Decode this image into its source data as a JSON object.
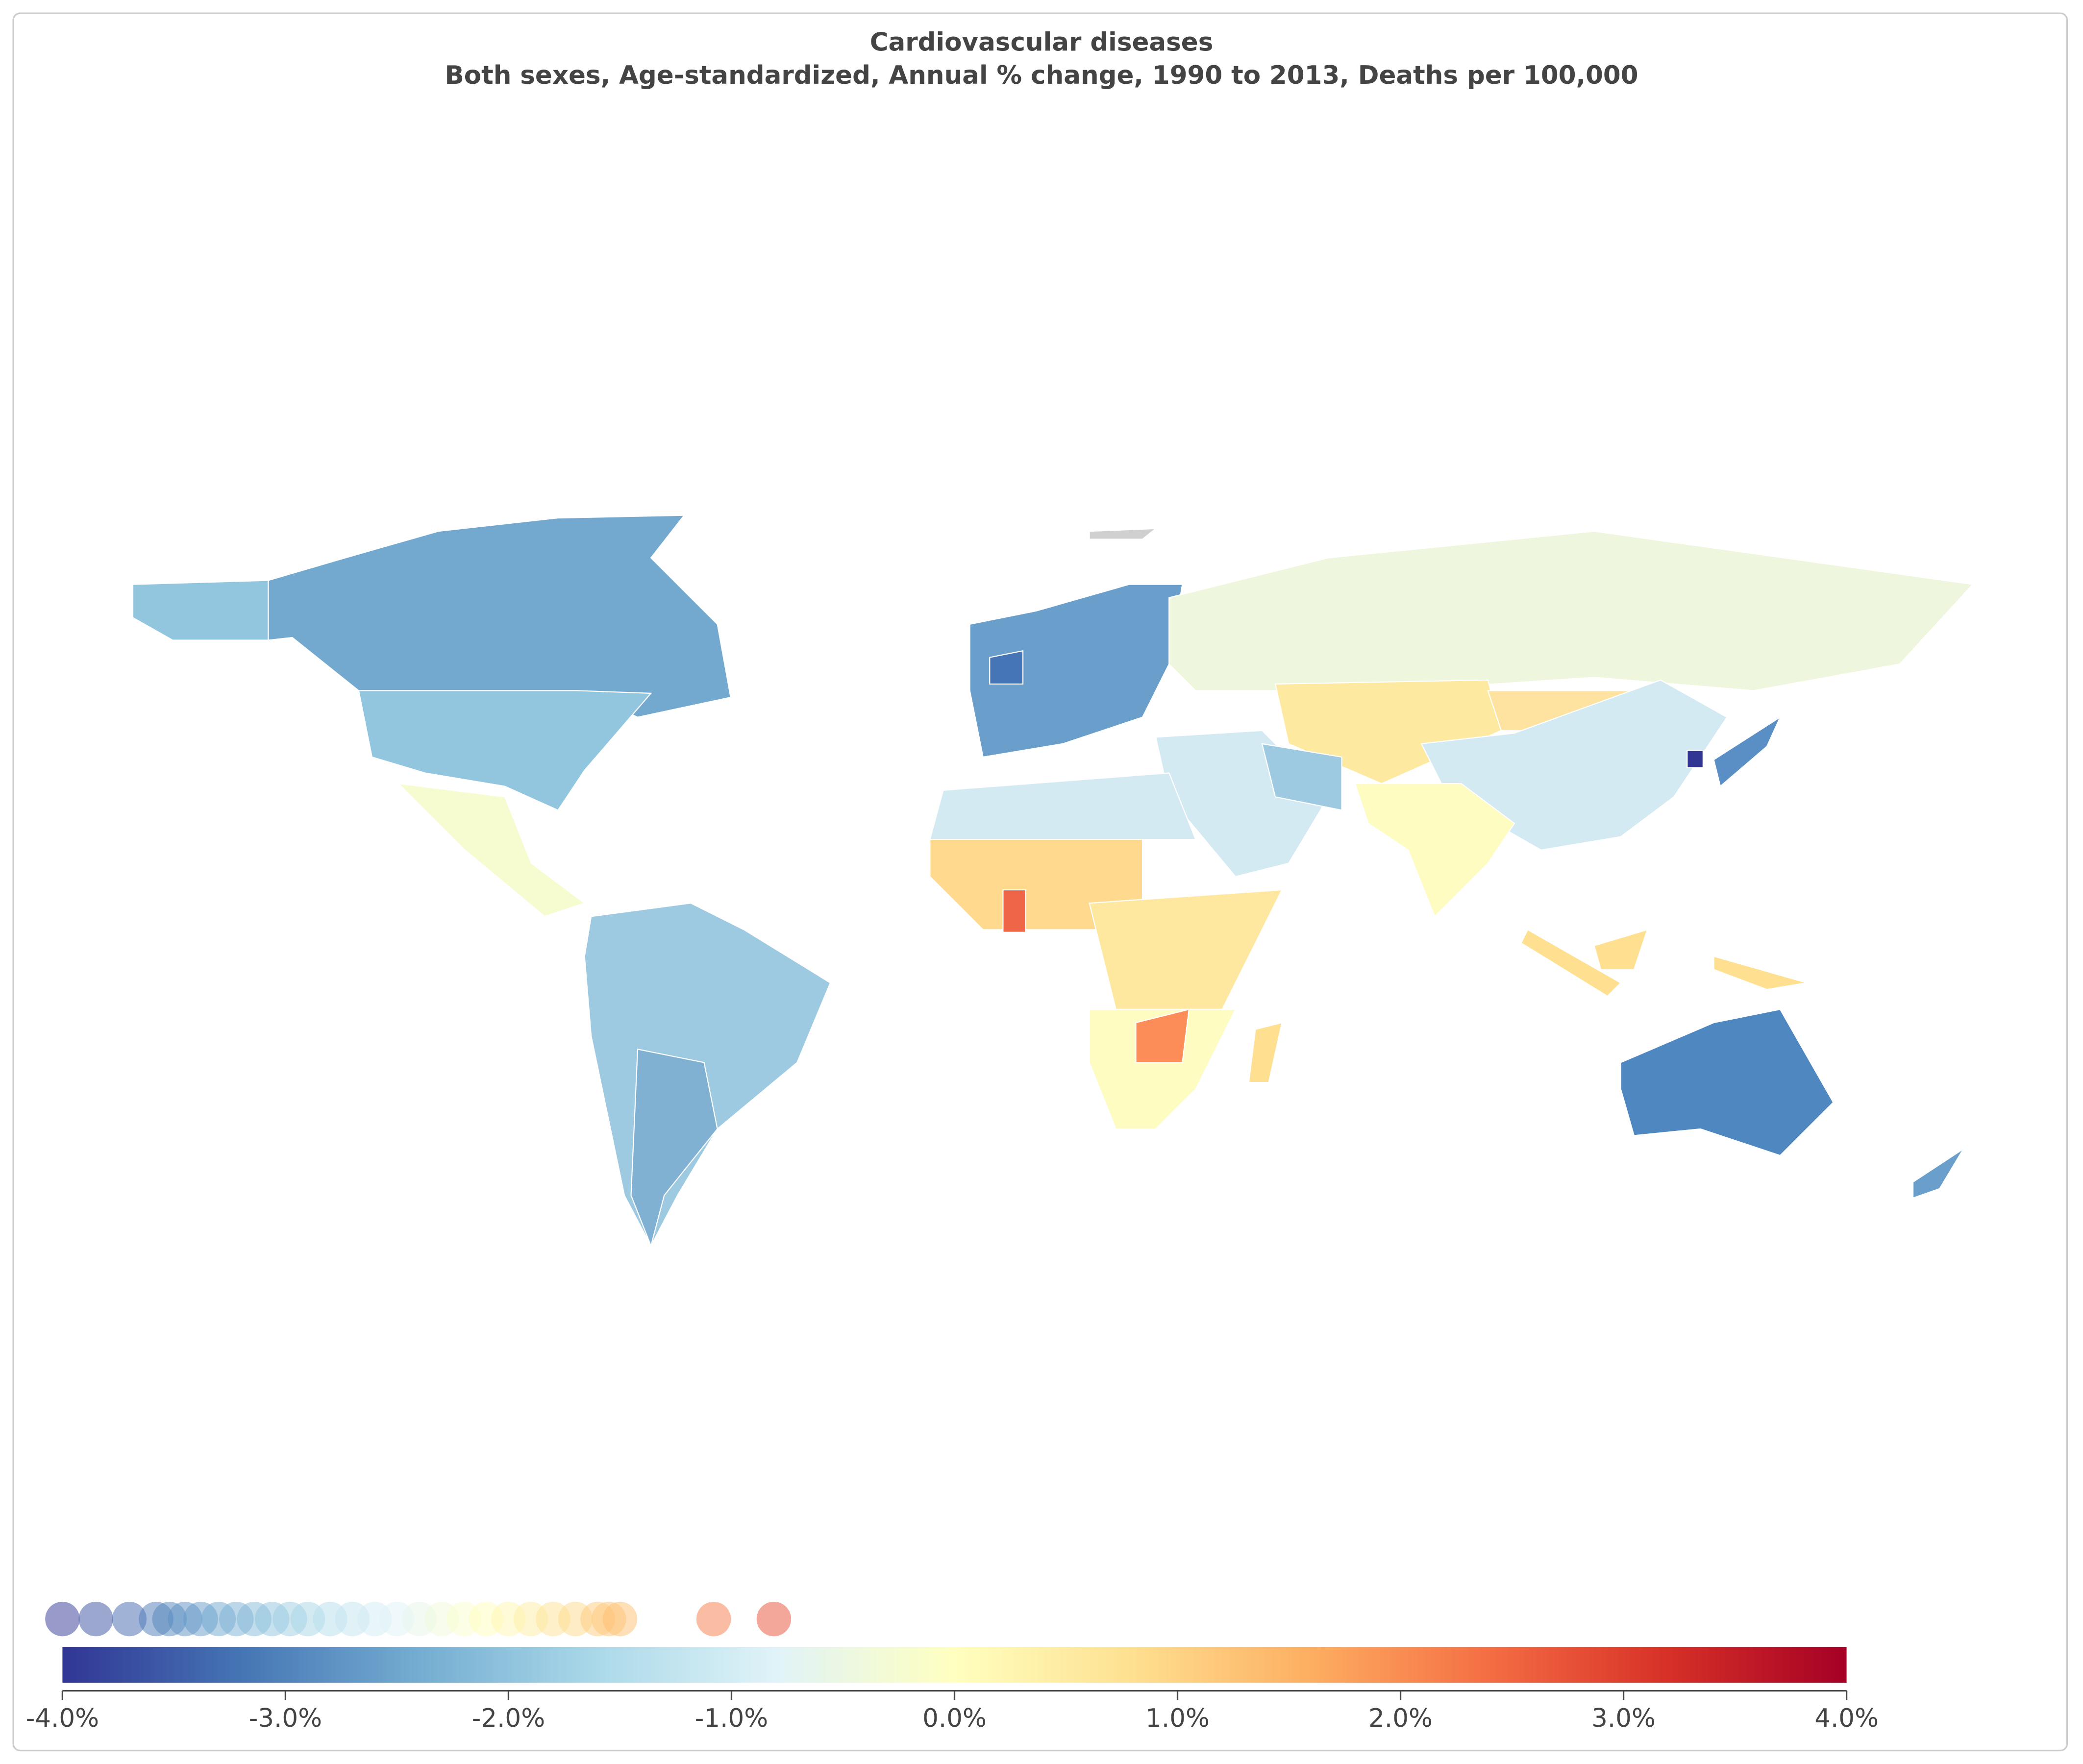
{
  "chart_data": {
    "type": "choropleth",
    "title": "Cardiovascular diseases",
    "subtitle": "Both sexes, Age-standardized, Annual % change, 1990 to 2013, Deaths per 100,000",
    "xlim": [
      -4,
      4
    ],
    "xticks": [
      {
        "value": -4,
        "label": "-4.0%"
      },
      {
        "value": -3,
        "label": "-3.0%"
      },
      {
        "value": -2,
        "label": "-2.0%"
      },
      {
        "value": -1,
        "label": "-1.0%"
      },
      {
        "value": 0,
        "label": "0.0%"
      },
      {
        "value": 1,
        "label": "1.0%"
      },
      {
        "value": 2,
        "label": "2.0%"
      },
      {
        "value": 3,
        "label": "3.0%"
      },
      {
        "value": 4,
        "label": "4.0%"
      }
    ],
    "colormap": [
      "#313695",
      "#4575b4",
      "#74add1",
      "#abd9e9",
      "#e0f3f8",
      "#ffffbf",
      "#fee090",
      "#fdae61",
      "#f46d43",
      "#d73027",
      "#a50026"
    ],
    "values": [
      -4.0,
      -3.85,
      -3.7,
      -3.58,
      -3.52,
      -3.45,
      -3.38,
      -3.3,
      -3.22,
      -3.14,
      -3.06,
      -2.98,
      -2.9,
      -2.8,
      -2.7,
      -2.6,
      -2.5,
      -2.4,
      -2.3,
      -2.2,
      -2.1,
      -2.0,
      -1.9,
      -1.8,
      -1.7,
      -1.6,
      -1.55,
      -1.5,
      -1.08,
      -0.81
    ]
  }
}
